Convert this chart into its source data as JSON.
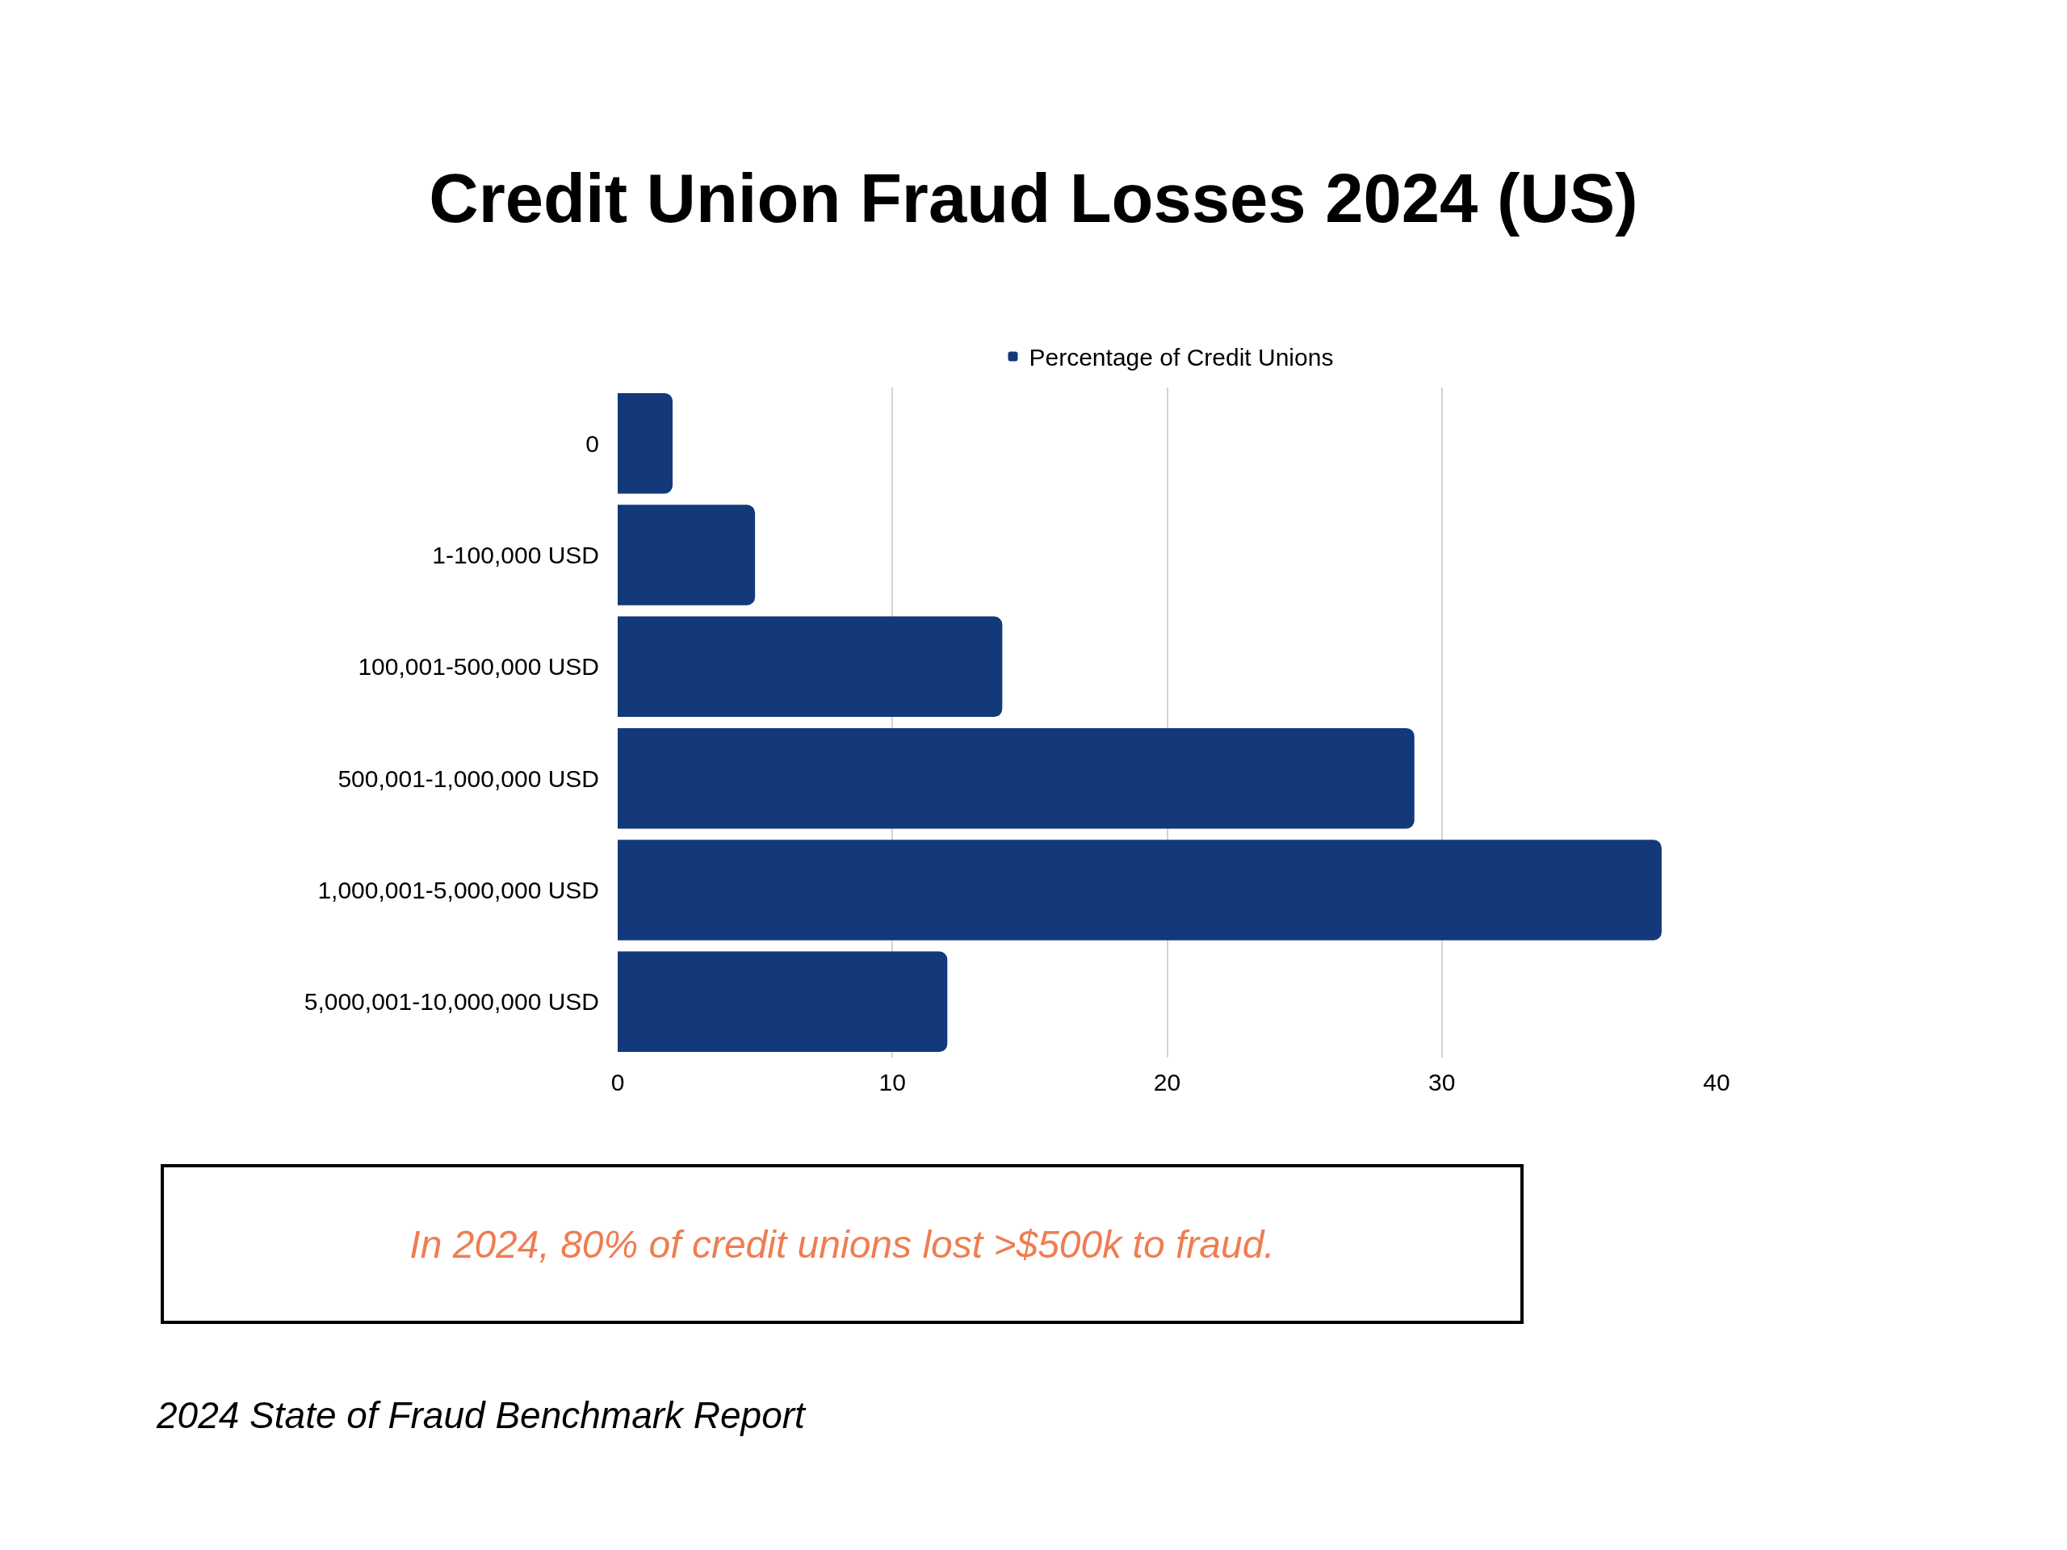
{
  "chart_data": {
    "type": "bar",
    "orientation": "horizontal",
    "title": "Credit Union Fraud Losses 2024 (US)",
    "categories": [
      "0",
      "1-100,000 USD",
      "100,001-500,000 USD",
      "500,001-1,000,000 USD",
      "1,000,001-5,000,000 USD",
      "5,000,001-10,000,000 USD"
    ],
    "series": [
      {
        "name": "Percentage of Credit Unions",
        "color": "#13397a",
        "values": [
          2,
          5,
          14,
          29,
          38,
          12
        ]
      }
    ],
    "xlim": [
      0,
      40
    ],
    "xticks": [
      0,
      10,
      20,
      30,
      40
    ],
    "grid": "x",
    "legend": "top",
    "annotations": [
      "In 2024, 80% of credit unions lost >$500k to fraud.",
      "2024 State of Fraud Benchmark Report"
    ]
  }
}
